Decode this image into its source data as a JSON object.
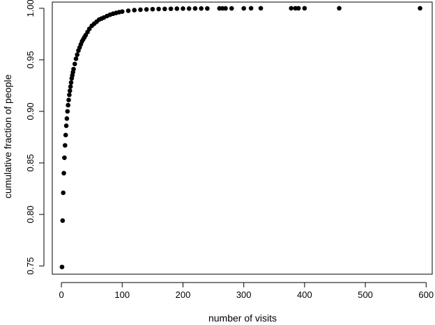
{
  "chart_data": {
    "type": "scatter",
    "title": "",
    "xlabel": "number of visits",
    "ylabel": "cumulative fraction of people",
    "xlim": [
      -15,
      610
    ],
    "ylim": [
      0.742,
      1.006
    ],
    "xticks": [
      0,
      100,
      200,
      300,
      400,
      500,
      600
    ],
    "xtick_labels": [
      "0",
      "100",
      "200",
      "300",
      "400",
      "500",
      "600"
    ],
    "yticks": [
      0.75,
      0.8,
      0.85,
      0.9,
      0.95,
      1.0
    ],
    "ytick_labels": [
      "0.75",
      "0.80",
      "0.85",
      "0.90",
      "0.95",
      "1.00"
    ],
    "grid": false,
    "legend": "none",
    "marker_color": "#000000",
    "series": [
      {
        "x": [
          1,
          2,
          3,
          4,
          5,
          6,
          7,
          8,
          9,
          10,
          11,
          12,
          13,
          14,
          15,
          16,
          17,
          18,
          19,
          20,
          22,
          24,
          26,
          28,
          30,
          32,
          34,
          36,
          38,
          40,
          43,
          46,
          50,
          54,
          58,
          62,
          66,
          70,
          75,
          80,
          85,
          90,
          95,
          100,
          110,
          120,
          130,
          140,
          150,
          160,
          170,
          180,
          190,
          200,
          210,
          220,
          230,
          240,
          260,
          265,
          270,
          280,
          300,
          312,
          328,
          378,
          385,
          390,
          400,
          457,
          590
        ],
        "y": [
          0.749,
          0.794,
          0.821,
          0.84,
          0.855,
          0.867,
          0.877,
          0.886,
          0.893,
          0.9,
          0.906,
          0.911,
          0.916,
          0.92,
          0.924,
          0.928,
          0.932,
          0.935,
          0.938,
          0.941,
          0.946,
          0.951,
          0.955,
          0.959,
          0.962,
          0.965,
          0.968,
          0.97,
          0.972,
          0.974,
          0.977,
          0.98,
          0.983,
          0.985,
          0.987,
          0.989,
          0.99,
          0.991,
          0.9925,
          0.9937,
          0.9947,
          0.9955,
          0.9962,
          0.9968,
          0.9976,
          0.9982,
          0.9986,
          0.9989,
          0.9991,
          0.9993,
          0.9994,
          0.9995,
          0.9996,
          0.9997,
          0.9997,
          0.9998,
          0.9998,
          0.9998,
          0.9999,
          0.9999,
          0.9999,
          0.9999,
          0.9999,
          1.0,
          1.0,
          1.0,
          1.0,
          1.0,
          1.0,
          1.0,
          1.0
        ]
      }
    ]
  }
}
